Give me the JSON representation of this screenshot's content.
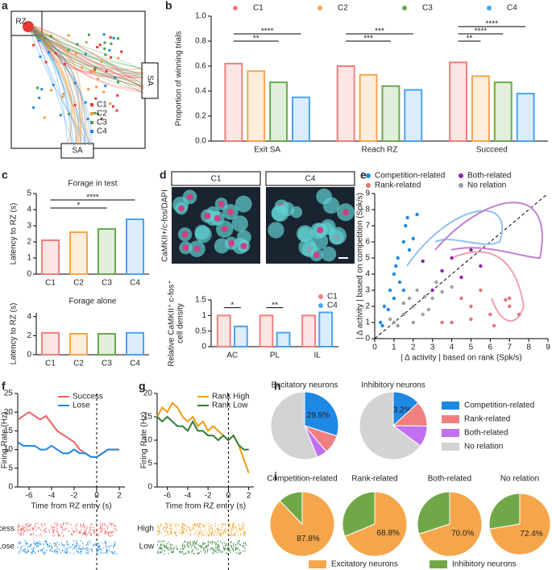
{
  "panel_letters": [
    "a",
    "b",
    "c",
    "d",
    "e",
    "f",
    "g",
    "h",
    "i"
  ],
  "trajectory": {
    "zone_labels": [
      "RZ",
      "SA",
      "SA"
    ],
    "legend": [
      {
        "name": "C1",
        "color": "#e53935"
      },
      {
        "name": "C2",
        "color": "#f39c33"
      },
      {
        "name": "C3",
        "color": "#43a047"
      },
      {
        "name": "C4",
        "color": "#1e88e5"
      }
    ]
  },
  "staining": {
    "columns": [
      "C1",
      "C4"
    ],
    "stain_label": "CaMKII+/c-fos/DAPI"
  },
  "chart_data": [
    {
      "type": "bar",
      "ylabel": "Proportion of winning trials",
      "categories": [
        "Exit SA",
        "Reach RZ",
        "Succeed"
      ],
      "series": [
        {
          "name": "C1",
          "color": "#f07f7f",
          "values": [
            0.62,
            0.6,
            0.63
          ]
        },
        {
          "name": "C2",
          "color": "#f5a64a",
          "values": [
            0.56,
            0.53,
            0.52
          ]
        },
        {
          "name": "C3",
          "color": "#6aa84f",
          "values": [
            0.47,
            0.44,
            0.47
          ]
        },
        {
          "name": "C4",
          "color": "#4aa3f0",
          "values": [
            0.35,
            0.41,
            0.38
          ]
        }
      ],
      "ylim": [
        0,
        1
      ],
      "yticks": [
        {
          "value": 0,
          "label": "0.0"
        },
        {
          "value": 0.2,
          "label": "0.2"
        },
        {
          "value": 0.4,
          "label": "0.4"
        },
        {
          "value": 0.6,
          "label": "0.6"
        },
        {
          "value": 0.8,
          "label": "0.8"
        },
        {
          "value": 1,
          "label": "1.0"
        }
      ],
      "legend": "top",
      "annotations": [
        "**",
        "****",
        "***",
        "***",
        "**",
        "****",
        "****"
      ]
    },
    {
      "type": "bar",
      "title": "Forage in test",
      "ylabel": "Latency to RZ (s)",
      "categories": [
        "C1",
        "C2",
        "C3",
        "C4"
      ],
      "colors": [
        "#f07f7f",
        "#f5a64a",
        "#6aa84f",
        "#4aa3f0"
      ],
      "values": [
        2.1,
        2.6,
        2.8,
        3.4
      ],
      "ylim": [
        0,
        5
      ],
      "yticks": [
        0,
        1,
        2,
        3,
        4,
        5
      ],
      "annotations": [
        "*",
        "****"
      ]
    },
    {
      "type": "bar",
      "title": "Forage alone",
      "ylabel": "Latency to RZ (s)",
      "categories": [
        "C1",
        "C2",
        "C3",
        "C4"
      ],
      "colors": [
        "#f07f7f",
        "#f5a64a",
        "#6aa84f",
        "#4aa3f0"
      ],
      "values": [
        2.3,
        2.2,
        2.2,
        2.3
      ],
      "ylim": [
        0,
        4.4
      ],
      "yticks": [
        0,
        2,
        4
      ]
    },
    {
      "type": "bar",
      "ylabel": [
        "Relative CaMKII⁺ c-fos⁺",
        "cell density"
      ],
      "categories": [
        "AC",
        "PL",
        "IL"
      ],
      "series": [
        {
          "name": "C1",
          "color": "#f07f7f",
          "values": [
            1.0,
            1.0,
            1.0
          ]
        },
        {
          "name": "C4",
          "color": "#4aa3f0",
          "values": [
            0.65,
            0.45,
            1.1
          ]
        }
      ],
      "ylim": [
        0,
        1.5
      ],
      "yticks": [
        0,
        0.5,
        1,
        1.5
      ],
      "legend": "upper right",
      "annotations": [
        "*",
        "**"
      ]
    },
    {
      "type": "scatter",
      "xlabel": "| Δ activity | based on rank (Spk/s)",
      "ylabel": "| Δ activity | based on competition (Spk/s)",
      "xlim": [
        0,
        9
      ],
      "ylim": [
        0,
        9
      ],
      "xticks": [
        0,
        1,
        2,
        3,
        4,
        5,
        6,
        7,
        8,
        9
      ],
      "yticks": [
        0,
        1,
        2,
        3,
        4,
        5,
        6,
        7,
        8,
        9
      ],
      "legend": "top",
      "series": [
        {
          "name": "Competition-related",
          "color": "#1e88e5",
          "x": [
            0.5,
            0.8,
            1,
            1.2,
            1.5,
            1.7,
            0.3,
            1,
            1.3,
            0.7,
            1.8,
            2,
            1.1,
            0.4,
            1.5,
            2.2,
            1.6
          ],
          "y": [
            2,
            3,
            4,
            5,
            6,
            7.5,
            1,
            2.5,
            3.5,
            1.8,
            5.5,
            6.2,
            4.5,
            0.8,
            3,
            7.7,
            7
          ]
        },
        {
          "name": "Both-related",
          "color": "#8e24aa",
          "x": [
            3,
            4,
            5,
            3.5,
            2.5,
            5.5,
            4.5
          ],
          "y": [
            3,
            5,
            5.5,
            4.2,
            4.8,
            4.5,
            3.8
          ]
        },
        {
          "name": "Rank-related",
          "color": "#e57373",
          "x": [
            4,
            5,
            6,
            7,
            6.8,
            7.5,
            5.5,
            4.5,
            3.5,
            7,
            5,
            6.2
          ],
          "y": [
            1,
            2,
            1.5,
            2,
            2.4,
            1.5,
            3,
            2.5,
            1,
            2.5,
            1.2,
            0.8
          ]
        },
        {
          "name": "No relation",
          "color": "#9e9e9e",
          "x": [
            1,
            1.5,
            2,
            2.5,
            1.8,
            2.2,
            3,
            1.2,
            2.8,
            0.8,
            3.2,
            2,
            1.5,
            2.6,
            3.5,
            4
          ],
          "y": [
            1,
            1.5,
            2,
            1.5,
            2.5,
            3,
            2.5,
            0.8,
            1.8,
            1.2,
            3.5,
            1,
            2.2,
            2.6,
            2.9,
            3.2
          ]
        }
      ]
    },
    {
      "type": "line",
      "xlabel": "Time from RZ entry (s)",
      "ylabel": "Firing Rate (Hz)",
      "xlim": [
        -7,
        2.5
      ],
      "ylim": [
        0,
        25
      ],
      "xticks": [
        -6,
        -4,
        -2,
        0,
        2
      ],
      "yticks": [
        0,
        5,
        10,
        15,
        20,
        25
      ],
      "legend": "upper right",
      "raster_labels": [
        "Success",
        "Lose"
      ],
      "x": [
        -7,
        -6.5,
        -6,
        -5.5,
        -5,
        -4.5,
        -4,
        -3.5,
        -3,
        -2.5,
        -2,
        -1.5,
        -1,
        -0.5,
        0,
        0.5,
        1,
        1.5,
        2
      ],
      "series": [
        {
          "name": "Success",
          "color": "#f06060",
          "values": [
            18,
            19,
            20,
            19,
            18,
            19,
            17,
            15,
            14,
            13,
            12,
            10,
            9,
            8,
            8,
            9,
            10,
            10,
            10
          ]
        },
        {
          "name": "Lose",
          "color": "#1e88e5",
          "values": [
            12,
            11,
            11,
            11,
            10,
            10,
            11,
            10,
            9,
            9,
            10,
            9,
            9,
            8,
            8,
            9,
            10,
            10,
            10
          ]
        }
      ]
    },
    {
      "type": "line",
      "xlabel": "Time from RZ entry (s)",
      "ylabel": "Firing Rate (Hz)",
      "xlim": [
        -7,
        2.5
      ],
      "ylim": [
        0,
        20
      ],
      "xticks": [
        -6,
        -4,
        -2,
        0,
        2
      ],
      "yticks": [
        0,
        5,
        10,
        15,
        20
      ],
      "legend": "upper right",
      "raster_labels": [
        "High",
        "Low"
      ],
      "x": [
        -7,
        -6.5,
        -6,
        -5.5,
        -5,
        -4.5,
        -4,
        -3.5,
        -3,
        -2.5,
        -2,
        -1.5,
        -1,
        -0.5,
        0,
        0.5,
        1,
        1.5,
        2
      ],
      "series": [
        {
          "name": "Rank High",
          "color": "#f39c12",
          "values": [
            15,
            17,
            16,
            18,
            17,
            15,
            14,
            15,
            13,
            14,
            12,
            13,
            12,
            11,
            10,
            11,
            9,
            6,
            3
          ]
        },
        {
          "name": "Rank Low",
          "color": "#2e7d32",
          "values": [
            15,
            14,
            15,
            14,
            13,
            13,
            12,
            14,
            12,
            12,
            11,
            11,
            10,
            11,
            10,
            11,
            9,
            8,
            8
          ]
        }
      ]
    },
    {
      "type": "pie",
      "title": "Excitatory neurons",
      "categories": [
        "Competition-related",
        "Rank-related",
        "Both-related",
        "No relation"
      ],
      "colors": [
        "#1e88e5",
        "#f08080",
        "#c070f0",
        "#d3d3d3"
      ],
      "values": [
        29.9,
        9,
        5,
        56.1
      ],
      "value_labels": [
        "29.9%",
        null,
        null,
        null
      ],
      "legend": "right"
    },
    {
      "type": "pie",
      "title": "Inhibitory neurons",
      "categories": [
        "Competition-related",
        "Rank-related",
        "Both-related",
        "No relation"
      ],
      "colors": [
        "#1e88e5",
        "#f08080",
        "#c070f0",
        "#d3d3d3"
      ],
      "values": [
        13.2,
        12,
        10,
        64.8
      ],
      "value_labels": [
        "13.2%",
        null,
        null,
        null
      ]
    },
    {
      "type": "pie",
      "title": "Competition-related",
      "categories": [
        "Excitatory neurons",
        "Inhibitory neurons"
      ],
      "colors": [
        "#f5a64a",
        "#70a848"
      ],
      "values": [
        87.8,
        12.2
      ],
      "value_labels": [
        "87.8%",
        null
      ],
      "legend": "bottom"
    },
    {
      "type": "pie",
      "title": "Rank-related",
      "categories": [
        "Excitatory neurons",
        "Inhibitory neurons"
      ],
      "colors": [
        "#f5a64a",
        "#70a848"
      ],
      "values": [
        68.8,
        31.2
      ],
      "value_labels": [
        "68.8%",
        null
      ]
    },
    {
      "type": "pie",
      "title": "Both-related",
      "categories": [
        "Excitatory neurons",
        "Inhibitory neurons"
      ],
      "colors": [
        "#f5a64a",
        "#70a848"
      ],
      "values": [
        70.0,
        30.0
      ],
      "value_labels": [
        "70.0%",
        null
      ]
    },
    {
      "type": "pie",
      "title": "No relation",
      "categories": [
        "Excitatory neurons",
        "Inhibitory neurons"
      ],
      "colors": [
        "#f5a64a",
        "#70a848"
      ],
      "values": [
        72.4,
        27.6
      ],
      "value_labels": [
        "72.4%",
        null
      ]
    }
  ]
}
